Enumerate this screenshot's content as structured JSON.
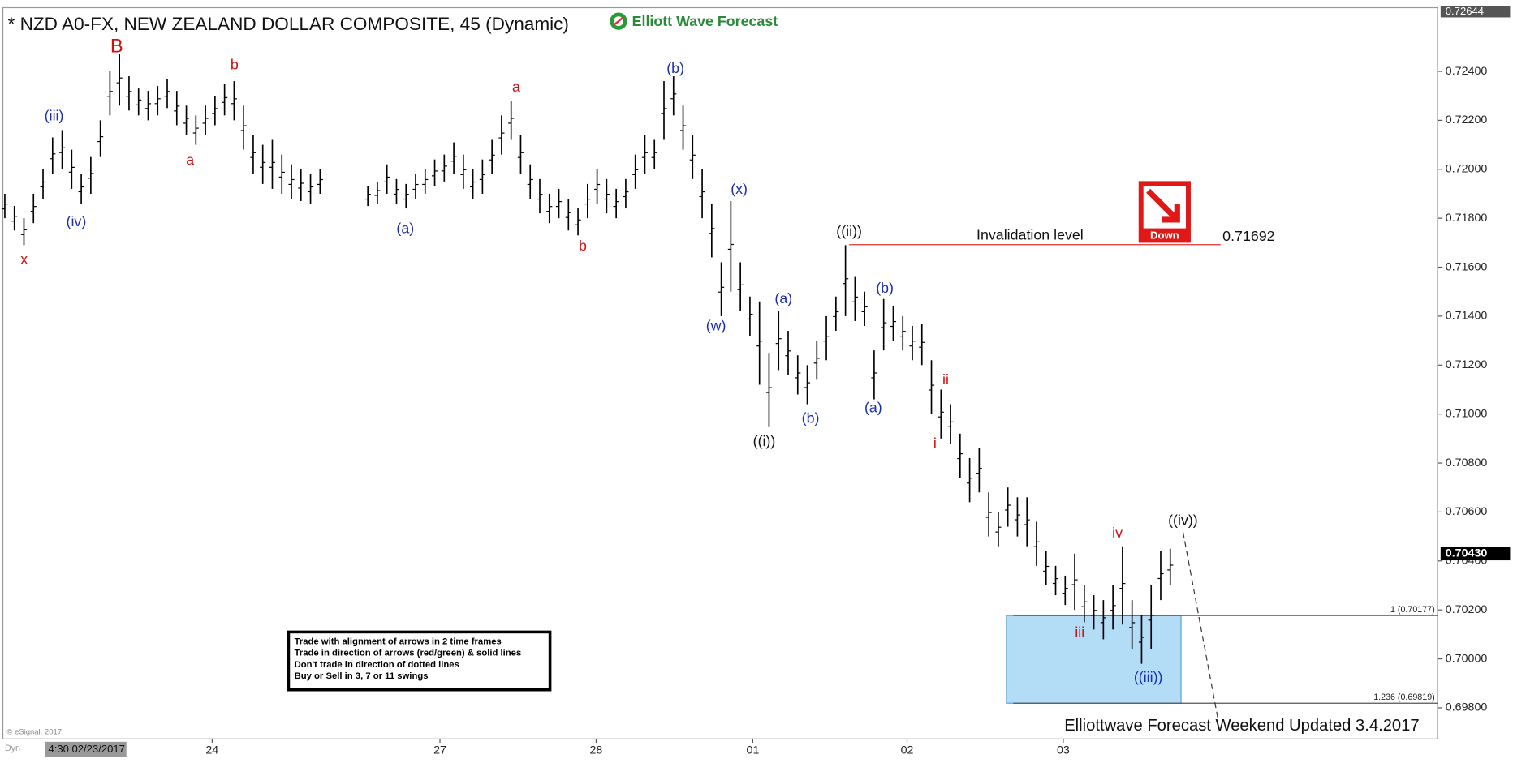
{
  "chart_data": {
    "type": "ohlc",
    "title": "* NZD A0-FX, NEW ZEALAND DOLLAR COMPOSITE, 45 (Dynamic)",
    "logo": "Elliott Wave Forecast",
    "color": "#000000",
    "x": [
      0,
      2,
      4,
      6,
      8,
      10,
      12,
      14,
      16,
      18,
      20,
      22,
      24,
      26,
      28,
      30,
      32,
      34,
      36,
      38,
      40,
      42,
      44,
      46,
      48,
      50,
      52,
      54,
      56,
      58,
      60,
      62,
      64,
      66,
      76,
      78,
      80,
      82,
      84,
      86,
      88,
      90,
      92,
      94,
      96,
      98,
      100,
      102,
      104,
      106,
      108,
      110,
      112,
      114,
      116,
      118,
      120,
      122,
      124,
      126,
      128,
      130,
      132,
      134,
      136,
      138,
      140,
      142,
      144,
      146,
      148,
      150,
      152,
      154,
      156,
      158,
      160,
      162,
      164,
      166,
      168,
      170,
      172,
      174,
      176,
      178,
      180,
      182,
      184,
      186,
      188,
      190,
      192,
      194,
      196,
      198,
      200,
      202,
      204,
      206,
      208,
      210,
      212,
      214,
      216,
      218,
      220,
      222,
      224,
      226,
      228,
      230,
      232,
      234,
      236,
      238,
      240,
      242,
      244
    ],
    "high": [
      0.719,
      0.7185,
      0.718,
      0.719,
      0.72,
      0.7213,
      0.7216,
      0.7208,
      0.7198,
      0.7205,
      0.722,
      0.724,
      0.7247,
      0.7238,
      0.7233,
      0.7232,
      0.7234,
      0.7237,
      0.7232,
      0.7226,
      0.7222,
      0.7226,
      0.723,
      0.7235,
      0.7236,
      0.7226,
      0.7214,
      0.721,
      0.7212,
      0.7206,
      0.7202,
      0.72,
      0.7198,
      0.72,
      0.7193,
      0.7195,
      0.7202,
      0.7196,
      0.7194,
      0.7198,
      0.72,
      0.7204,
      0.7206,
      0.7211,
      0.7206,
      0.72,
      0.7204,
      0.7212,
      0.7222,
      0.7228,
      0.7214,
      0.7202,
      0.7196,
      0.719,
      0.7192,
      0.7188,
      0.7184,
      0.7194,
      0.72,
      0.7196,
      0.7192,
      0.7196,
      0.7206,
      0.7214,
      0.7212,
      0.7236,
      0.7238,
      0.7226,
      0.7214,
      0.72,
      0.7186,
      0.7162,
      0.7187,
      0.7162,
      0.7148,
      0.7146,
      0.7125,
      0.7142,
      0.7134,
      0.7124,
      0.712,
      0.713,
      0.714,
      0.7148,
      0.7169,
      0.7156,
      0.715,
      0.7126,
      0.7147,
      0.7144,
      0.714,
      0.7136,
      0.7137,
      0.7122,
      0.711,
      0.7104,
      0.7092,
      0.7082,
      0.7086,
      0.7068,
      0.706,
      0.707,
      0.7066,
      0.7066,
      0.7056,
      0.7044,
      0.7038,
      0.7034,
      0.7043,
      0.703,
      0.7026,
      0.7024,
      0.703,
      0.7046,
      0.7024,
      0.7018,
      0.703,
      0.7044,
      0.7045
    ],
    "low": [
      0.718,
      0.7175,
      0.7169,
      0.7178,
      0.7188,
      0.7198,
      0.72,
      0.7192,
      0.7186,
      0.719,
      0.7205,
      0.7222,
      0.7226,
      0.7224,
      0.7222,
      0.722,
      0.7222,
      0.7225,
      0.7218,
      0.7214,
      0.721,
      0.7214,
      0.7218,
      0.7222,
      0.722,
      0.7208,
      0.7198,
      0.7194,
      0.7192,
      0.719,
      0.7188,
      0.7187,
      0.7186,
      0.719,
      0.7185,
      0.7186,
      0.719,
      0.7186,
      0.7184,
      0.7188,
      0.719,
      0.7193,
      0.7195,
      0.7198,
      0.7192,
      0.7188,
      0.719,
      0.7198,
      0.7206,
      0.7212,
      0.7198,
      0.7188,
      0.7182,
      0.7178,
      0.718,
      0.7175,
      0.7173,
      0.718,
      0.7186,
      0.7182,
      0.718,
      0.7184,
      0.7192,
      0.7198,
      0.72,
      0.7212,
      0.7222,
      0.7208,
      0.7196,
      0.718,
      0.7164,
      0.714,
      0.715,
      0.7142,
      0.7132,
      0.7112,
      0.7095,
      0.7118,
      0.7116,
      0.7108,
      0.7104,
      0.7114,
      0.7122,
      0.7134,
      0.714,
      0.7138,
      0.7136,
      0.7106,
      0.7126,
      0.713,
      0.7126,
      0.7122,
      0.712,
      0.71,
      0.709,
      0.7088,
      0.7074,
      0.7064,
      0.7068,
      0.705,
      0.7046,
      0.7054,
      0.705,
      0.7046,
      0.7038,
      0.703,
      0.7026,
      0.7022,
      0.702,
      0.7015,
      0.7012,
      0.7008,
      0.7012,
      0.7014,
      0.7004,
      0.6998,
      0.7004,
      0.7024,
      0.703
    ],
    "xlim": [
      0,
      300
    ],
    "xticks": [
      {
        "value": 43.4,
        "label": "24"
      },
      {
        "value": 91.1,
        "label": "27"
      },
      {
        "value": 123.8,
        "label": "28"
      },
      {
        "value": 156.6,
        "label": "01"
      },
      {
        "value": 188.9,
        "label": "02"
      },
      {
        "value": 221.6,
        "label": "03"
      }
    ],
    "ylim": [
      0.69673,
      0.7266
    ],
    "yticks": [
      {
        "value": 0.698,
        "label": "0.69800"
      },
      {
        "value": 0.7,
        "label": "0.70000"
      },
      {
        "value": 0.702,
        "label": "0.70200"
      },
      {
        "value": 0.704,
        "label": "0.70400"
      },
      {
        "value": 0.706,
        "label": "0.70600"
      },
      {
        "value": 0.708,
        "label": "0.70800"
      },
      {
        "value": 0.71,
        "label": "0.71000"
      },
      {
        "value": 0.712,
        "label": "0.71200"
      },
      {
        "value": 0.714,
        "label": "0.71400"
      },
      {
        "value": 0.716,
        "label": "0.71600"
      },
      {
        "value": 0.718,
        "label": "0.71800"
      },
      {
        "value": 0.72,
        "label": "0.72000"
      },
      {
        "value": 0.722,
        "label": "0.72200"
      },
      {
        "value": 0.724,
        "label": "0.72400"
      }
    ],
    "top_price": {
      "value": 0.72644,
      "label": "0.72644"
    },
    "last_price": {
      "value": 0.7043,
      "label": "0.70430"
    },
    "invalidation": {
      "label": "Invalidation level",
      "value": 0.71692,
      "color": "#e03030"
    },
    "arrow_label": "Down",
    "fib_levels": [
      {
        "value": 0.70177,
        "label": "1 (0.70177)"
      },
      {
        "value": 0.69819,
        "label": "1.236 (0.69819)"
      }
    ],
    "zone_color": "#b3dcf7",
    "annotations": [
      {
        "text": "x",
        "color": "#d01010"
      },
      {
        "text": "(iii)",
        "color": "#1a2fb0"
      },
      {
        "text": "(iv)",
        "color": "#1a2fb0"
      },
      {
        "text": "B",
        "color": "#d01010"
      },
      {
        "text": "a",
        "color": "#d01010"
      },
      {
        "text": "b",
        "color": "#d01010"
      },
      {
        "text": "(a)",
        "color": "#1a2fb0"
      },
      {
        "text": "a",
        "color": "#d01010"
      },
      {
        "text": "b",
        "color": "#d01010"
      },
      {
        "text": "(b)",
        "color": "#1a2fb0"
      },
      {
        "text": "(x)",
        "color": "#1a2fb0"
      },
      {
        "text": "(w)",
        "color": "#1a2fb0"
      },
      {
        "text": "((i))",
        "color": "#111111"
      },
      {
        "text": "(a)",
        "color": "#1a2fb0"
      },
      {
        "text": "(b)",
        "color": "#1a2fb0"
      },
      {
        "text": "((ii))",
        "color": "#111111"
      },
      {
        "text": "(b)",
        "color": "#1a2fb0"
      },
      {
        "text": "(a)",
        "color": "#1a2fb0"
      },
      {
        "text": "ii",
        "color": "#d01010"
      },
      {
        "text": "i",
        "color": "#d01010"
      },
      {
        "text": "iv",
        "color": "#d01010"
      },
      {
        "text": "((iv))",
        "color": "#111111"
      },
      {
        "text": "iii",
        "color": "#d01010"
      },
      {
        "text": "((iii))",
        "color": "#1a2fb0"
      }
    ],
    "rules": [
      "Trade with alignment of arrows in 2 time frames",
      "Trade in direction of arrows (red/green) & solid lines",
      "Don't trade in direction of dotted lines",
      "Buy or Sell in 3, 7 or 11 swings"
    ],
    "footer": "Elliottwave Forecast Weekend  Updated 3.4.2017",
    "copyright": "© eSignal, 2017",
    "start_label": "4:30 02/23/2017",
    "mode_label": "Dyn"
  }
}
